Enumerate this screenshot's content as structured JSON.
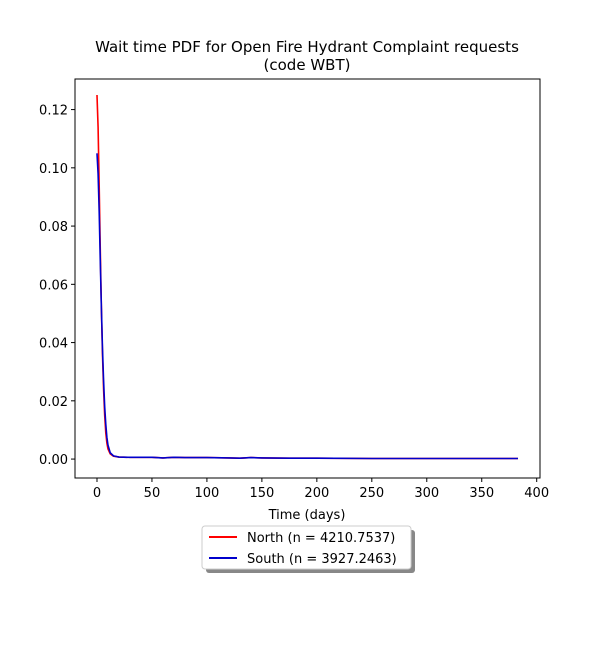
{
  "chart_data": {
    "type": "line",
    "title_line1": "Wait time PDF for Open Fire Hydrant Complaint  requests",
    "title_line2": "(code WBT)",
    "xlabel": "Time (days)",
    "ylabel": "",
    "xlim": [
      -20,
      403
    ],
    "ylim": [
      -0.0065,
      0.1305
    ],
    "xticks": [
      0,
      50,
      100,
      150,
      200,
      250,
      300,
      350,
      400
    ],
    "yticks": [
      0.0,
      0.02,
      0.04,
      0.06,
      0.08,
      0.1,
      0.12
    ],
    "ytick_labels": [
      "0.00",
      "0.02",
      "0.04",
      "0.06",
      "0.08",
      "0.10",
      "0.12"
    ],
    "grid": false,
    "legend_placement": "below",
    "series": [
      {
        "name": "North (n = 4210.7537)",
        "color": "#ff0000",
        "points": [
          [
            0,
            0.125
          ],
          [
            1,
            0.114
          ],
          [
            2,
            0.094
          ],
          [
            3,
            0.072
          ],
          [
            4,
            0.052
          ],
          [
            5,
            0.036
          ],
          [
            6,
            0.024
          ],
          [
            7,
            0.015
          ],
          [
            8,
            0.009
          ],
          [
            9,
            0.0055
          ],
          [
            10,
            0.0035
          ],
          [
            12,
            0.0018
          ],
          [
            15,
            0.001
          ],
          [
            20,
            0.0007
          ],
          [
            30,
            0.0006
          ],
          [
            50,
            0.0006
          ],
          [
            60,
            0.0004
          ],
          [
            70,
            0.0006
          ],
          [
            80,
            0.0005
          ],
          [
            100,
            0.0005
          ],
          [
            120,
            0.0004
          ],
          [
            130,
            0.0003
          ],
          [
            140,
            0.0005
          ],
          [
            150,
            0.0004
          ],
          [
            175,
            0.0003
          ],
          [
            200,
            0.0003
          ],
          [
            250,
            0.0002
          ],
          [
            300,
            0.0002
          ],
          [
            350,
            0.0002
          ],
          [
            383,
            0.0002
          ]
        ]
      },
      {
        "name": "South (n = 3927.2463)",
        "color": "#0000cc",
        "points": [
          [
            0,
            0.105
          ],
          [
            1,
            0.098
          ],
          [
            2,
            0.085
          ],
          [
            3,
            0.068
          ],
          [
            4,
            0.052
          ],
          [
            5,
            0.038
          ],
          [
            6,
            0.027
          ],
          [
            7,
            0.018
          ],
          [
            8,
            0.012
          ],
          [
            9,
            0.0075
          ],
          [
            10,
            0.0048
          ],
          [
            12,
            0.0022
          ],
          [
            15,
            0.0011
          ],
          [
            20,
            0.0007
          ],
          [
            30,
            0.0006
          ],
          [
            50,
            0.0006
          ],
          [
            60,
            0.0004
          ],
          [
            70,
            0.0006
          ],
          [
            80,
            0.0005
          ],
          [
            100,
            0.0005
          ],
          [
            120,
            0.0004
          ],
          [
            130,
            0.0003
          ],
          [
            140,
            0.0005
          ],
          [
            150,
            0.0004
          ],
          [
            175,
            0.0003
          ],
          [
            200,
            0.0003
          ],
          [
            250,
            0.0002
          ],
          [
            300,
            0.0002
          ],
          [
            350,
            0.0002
          ],
          [
            383,
            0.0002
          ]
        ]
      }
    ]
  }
}
